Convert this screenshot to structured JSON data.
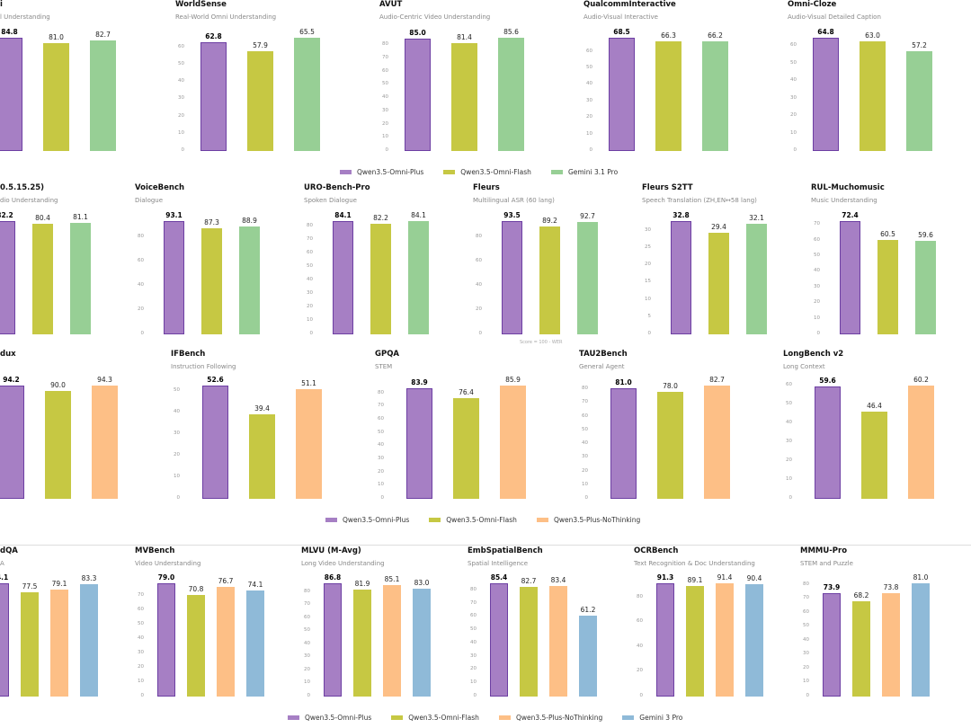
{
  "colors": {
    "Qwen3.5-Omni-Plus": "#a67fc4",
    "Qwen3.5-Omni-Flash": "#c6c843",
    "Gemini 3.1 Pro": "#97cf95",
    "Qwen3.5-Plus-NoThinking": "#fdbf86",
    "Gemini 3 Pro": "#8fbad8",
    "highlight_border": "#6d3fa3"
  },
  "legends": [
    {
      "items": [
        "Qwen3.5-Omni-Plus",
        "Qwen3.5-Omni-Flash",
        "Gemini 3.1 Pro"
      ]
    },
    {
      "items": [
        "Qwen3.5-Omni-Plus",
        "Qwen3.5-Omni-Flash",
        "Qwen3.5-Plus-NoThinking"
      ]
    },
    {
      "items": [
        "Qwen3.5-Omni-Plus",
        "Qwen3.5-Omni-Flash",
        "Qwen3.5-Plus-NoThinking",
        "Gemini 3 Pro"
      ]
    }
  ],
  "chart_data": [
    {
      "type": "bar",
      "title": "i",
      "subtitle": "l Understanding",
      "series": [
        "Qwen3.5-Omni-Plus",
        "Qwen3.5-Omni-Flash",
        "Gemini 3.1 Pro"
      ],
      "values": [
        84.8,
        81.0,
        82.7
      ],
      "ytick_step": 10
    },
    {
      "type": "bar",
      "title": "WorldSense",
      "subtitle": "Real-World Omni Understanding",
      "series": [
        "Qwen3.5-Omni-Plus",
        "Qwen3.5-Omni-Flash",
        "Gemini 3.1 Pro"
      ],
      "values": [
        62.8,
        57.9,
        65.5
      ],
      "ytick_step": 10
    },
    {
      "type": "bar",
      "title": "AVUT",
      "subtitle": "Audio-Centric Video Understanding",
      "series": [
        "Qwen3.5-Omni-Plus",
        "Qwen3.5-Omni-Flash",
        "Gemini 3.1 Pro"
      ],
      "values": [
        85.0,
        81.4,
        85.6
      ],
      "ytick_step": 10
    },
    {
      "type": "bar",
      "title": "QualcommInteractive",
      "subtitle": "Audio-Visual Interactive",
      "series": [
        "Qwen3.5-Omni-Plus",
        "Qwen3.5-Omni-Flash",
        "Gemini 3.1 Pro"
      ],
      "values": [
        68.5,
        66.3,
        66.2
      ],
      "ytick_step": 10
    },
    {
      "type": "bar",
      "title": "Omni-Cloze",
      "subtitle": "Audio-Visual Detailed Caption",
      "series": [
        "Qwen3.5-Omni-Plus",
        "Qwen3.5-Omni-Flash",
        "Gemini 3.1 Pro"
      ],
      "values": [
        64.8,
        63.0,
        57.2
      ],
      "ytick_step": 10
    },
    {
      "type": "bar",
      "title": "0.5.15.25)",
      "subtitle": "dio Understanding",
      "series": [
        "Qwen3.5-Omni-Plus",
        "Qwen3.5-Omni-Flash",
        "Gemini 3.1 Pro"
      ],
      "values": [
        82.2,
        80.4,
        81.1
      ],
      "ytick_step": 20
    },
    {
      "type": "bar",
      "title": "VoiceBench",
      "subtitle": "Dialogue",
      "series": [
        "Qwen3.5-Omni-Plus",
        "Qwen3.5-Omni-Flash",
        "Gemini 3.1 Pro"
      ],
      "values": [
        93.1,
        87.3,
        88.9
      ],
      "ytick_step": 20
    },
    {
      "type": "bar",
      "title": "URO-Bench-Pro",
      "subtitle": "Spoken Dialogue",
      "series": [
        "Qwen3.5-Omni-Plus",
        "Qwen3.5-Omni-Flash",
        "Gemini 3.1 Pro"
      ],
      "values": [
        84.1,
        82.2,
        84.1
      ],
      "ytick_step": 10
    },
    {
      "type": "bar",
      "title": "Fleurs",
      "subtitle": "Multilingual ASR (60 lang)",
      "note": "Score = 100 - WER",
      "series": [
        "Qwen3.5-Omni-Plus",
        "Qwen3.5-Omni-Flash",
        "Gemini 3.1 Pro"
      ],
      "values": [
        93.5,
        89.2,
        92.7
      ],
      "ytick_step": 20
    },
    {
      "type": "bar",
      "title": "Fleurs S2TT",
      "subtitle": "Speech Translation (ZH,EN↔58 lang)",
      "series": [
        "Qwen3.5-Omni-Plus",
        "Qwen3.5-Omni-Flash",
        "Gemini 3.1 Pro"
      ],
      "values": [
        32.8,
        29.4,
        32.1
      ],
      "ytick_step": 5
    },
    {
      "type": "bar",
      "title": "RUL-Muchomusic",
      "subtitle": "Music Understanding",
      "series": [
        "Qwen3.5-Omni-Plus",
        "Qwen3.5-Omni-Flash",
        "Gemini 3.1 Pro"
      ],
      "values": [
        72.4,
        60.5,
        59.6
      ],
      "ytick_step": 10
    },
    {
      "type": "bar",
      "title": "dux",
      "subtitle": "",
      "series": [
        "Qwen3.5-Omni-Plus",
        "Qwen3.5-Omni-Flash",
        "Qwen3.5-Plus-NoThinking"
      ],
      "values": [
        94.2,
        90.0,
        94.3
      ],
      "ytick_step": 10
    },
    {
      "type": "bar",
      "title": "IFBench",
      "subtitle": "Instruction Following",
      "series": [
        "Qwen3.5-Omni-Plus",
        "Qwen3.5-Omni-Flash",
        "Qwen3.5-Plus-NoThinking"
      ],
      "values": [
        52.6,
        39.4,
        51.1
      ],
      "ytick_step": 10
    },
    {
      "type": "bar",
      "title": "GPQA",
      "subtitle": "STEM",
      "series": [
        "Qwen3.5-Omni-Plus",
        "Qwen3.5-Omni-Flash",
        "Qwen3.5-Plus-NoThinking"
      ],
      "values": [
        83.9,
        76.4,
        85.9
      ],
      "ytick_step": 10
    },
    {
      "type": "bar",
      "title": "TAU2Bench",
      "subtitle": "General Agent",
      "series": [
        "Qwen3.5-Omni-Plus",
        "Qwen3.5-Omni-Flash",
        "Qwen3.5-Plus-NoThinking"
      ],
      "values": [
        81.0,
        78.0,
        82.7
      ],
      "ytick_step": 10
    },
    {
      "type": "bar",
      "title": "LongBench v2",
      "subtitle": "Long Context",
      "series": [
        "Qwen3.5-Omni-Plus",
        "Qwen3.5-Omni-Flash",
        "Qwen3.5-Plus-NoThinking"
      ],
      "values": [
        59.6,
        46.4,
        60.2
      ],
      "ytick_step": 10
    },
    {
      "type": "bar",
      "title": "dQA",
      "subtitle": "A",
      "series": [
        "Qwen3.5-Omni-Plus",
        "Qwen3.5-Omni-Flash",
        "Qwen3.5-Plus-NoThinking",
        "Gemini 3 Pro"
      ],
      "values": [
        84.1,
        77.5,
        79.1,
        83.3
      ],
      "ytick_step": 10
    },
    {
      "type": "bar",
      "title": "MVBench",
      "subtitle": "Video Understanding",
      "series": [
        "Qwen3.5-Omni-Plus",
        "Qwen3.5-Omni-Flash",
        "Qwen3.5-Plus-NoThinking",
        "Gemini 3 Pro"
      ],
      "values": [
        79.0,
        70.8,
        76.7,
        74.1
      ],
      "ytick_step": 10
    },
    {
      "type": "bar",
      "title": "MLVU (M-Avg)",
      "subtitle": "Long Video Understanding",
      "series": [
        "Qwen3.5-Omni-Plus",
        "Qwen3.5-Omni-Flash",
        "Qwen3.5-Plus-NoThinking",
        "Gemini 3 Pro"
      ],
      "values": [
        86.8,
        81.9,
        85.1,
        83.0
      ],
      "ytick_step": 10
    },
    {
      "type": "bar",
      "title": "EmbSpatialBench",
      "subtitle": "Spatial Intelligence",
      "series": [
        "Qwen3.5-Omni-Plus",
        "Qwen3.5-Omni-Flash",
        "Qwen3.5-Plus-NoThinking",
        "Gemini 3 Pro"
      ],
      "values": [
        85.4,
        82.7,
        83.4,
        61.2
      ],
      "ytick_step": 10
    },
    {
      "type": "bar",
      "title": "OCRBench",
      "subtitle": "Text Recognition & Doc Understanding",
      "series": [
        "Qwen3.5-Omni-Plus",
        "Qwen3.5-Omni-Flash",
        "Qwen3.5-Plus-NoThinking",
        "Gemini 3 Pro"
      ],
      "values": [
        91.3,
        89.1,
        91.4,
        90.4
      ],
      "ytick_step": 20
    },
    {
      "type": "bar",
      "title": "MMMU-Pro",
      "subtitle": "STEM and Puzzle",
      "series": [
        "Qwen3.5-Omni-Plus",
        "Qwen3.5-Omni-Flash",
        "Qwen3.5-Plus-NoThinking",
        "Gemini 3 Pro"
      ],
      "values": [
        73.9,
        68.2,
        73.8,
        81.0
      ],
      "ytick_step": 10
    }
  ]
}
